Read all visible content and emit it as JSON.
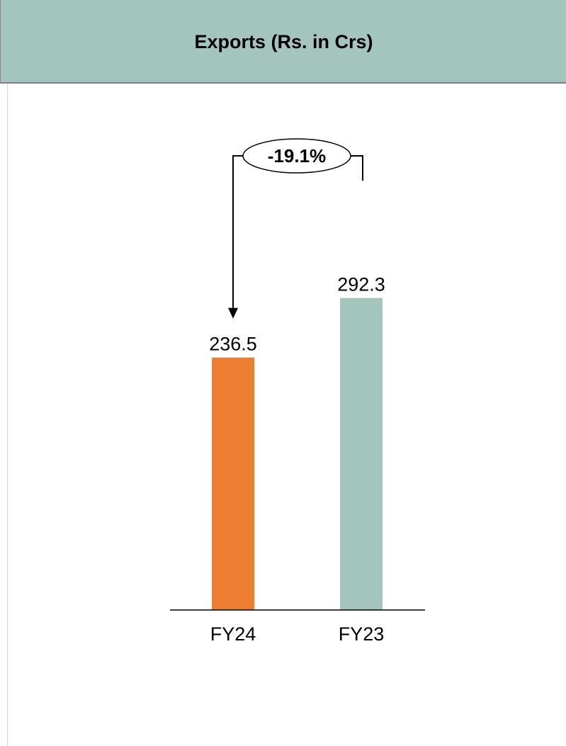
{
  "chart_data": {
    "type": "bar",
    "title": "Exports (Rs. in Crs)",
    "categories": [
      "FY24",
      "FY23"
    ],
    "values": [
      236.5,
      292.3
    ],
    "value_labels": [
      "236.5",
      "292.3"
    ],
    "colors": [
      "#ed7d31",
      "#a4c5bd"
    ],
    "xlabel": "",
    "ylabel": "",
    "ylim": [
      0,
      320
    ],
    "grid": false,
    "annotation": {
      "text": "-19.1%",
      "from_category": "FY23",
      "to_category": "FY24"
    }
  },
  "colors": {
    "header_bg": "#a4c5bd",
    "header_border": "#7f7f7f",
    "axis": "#000000"
  }
}
